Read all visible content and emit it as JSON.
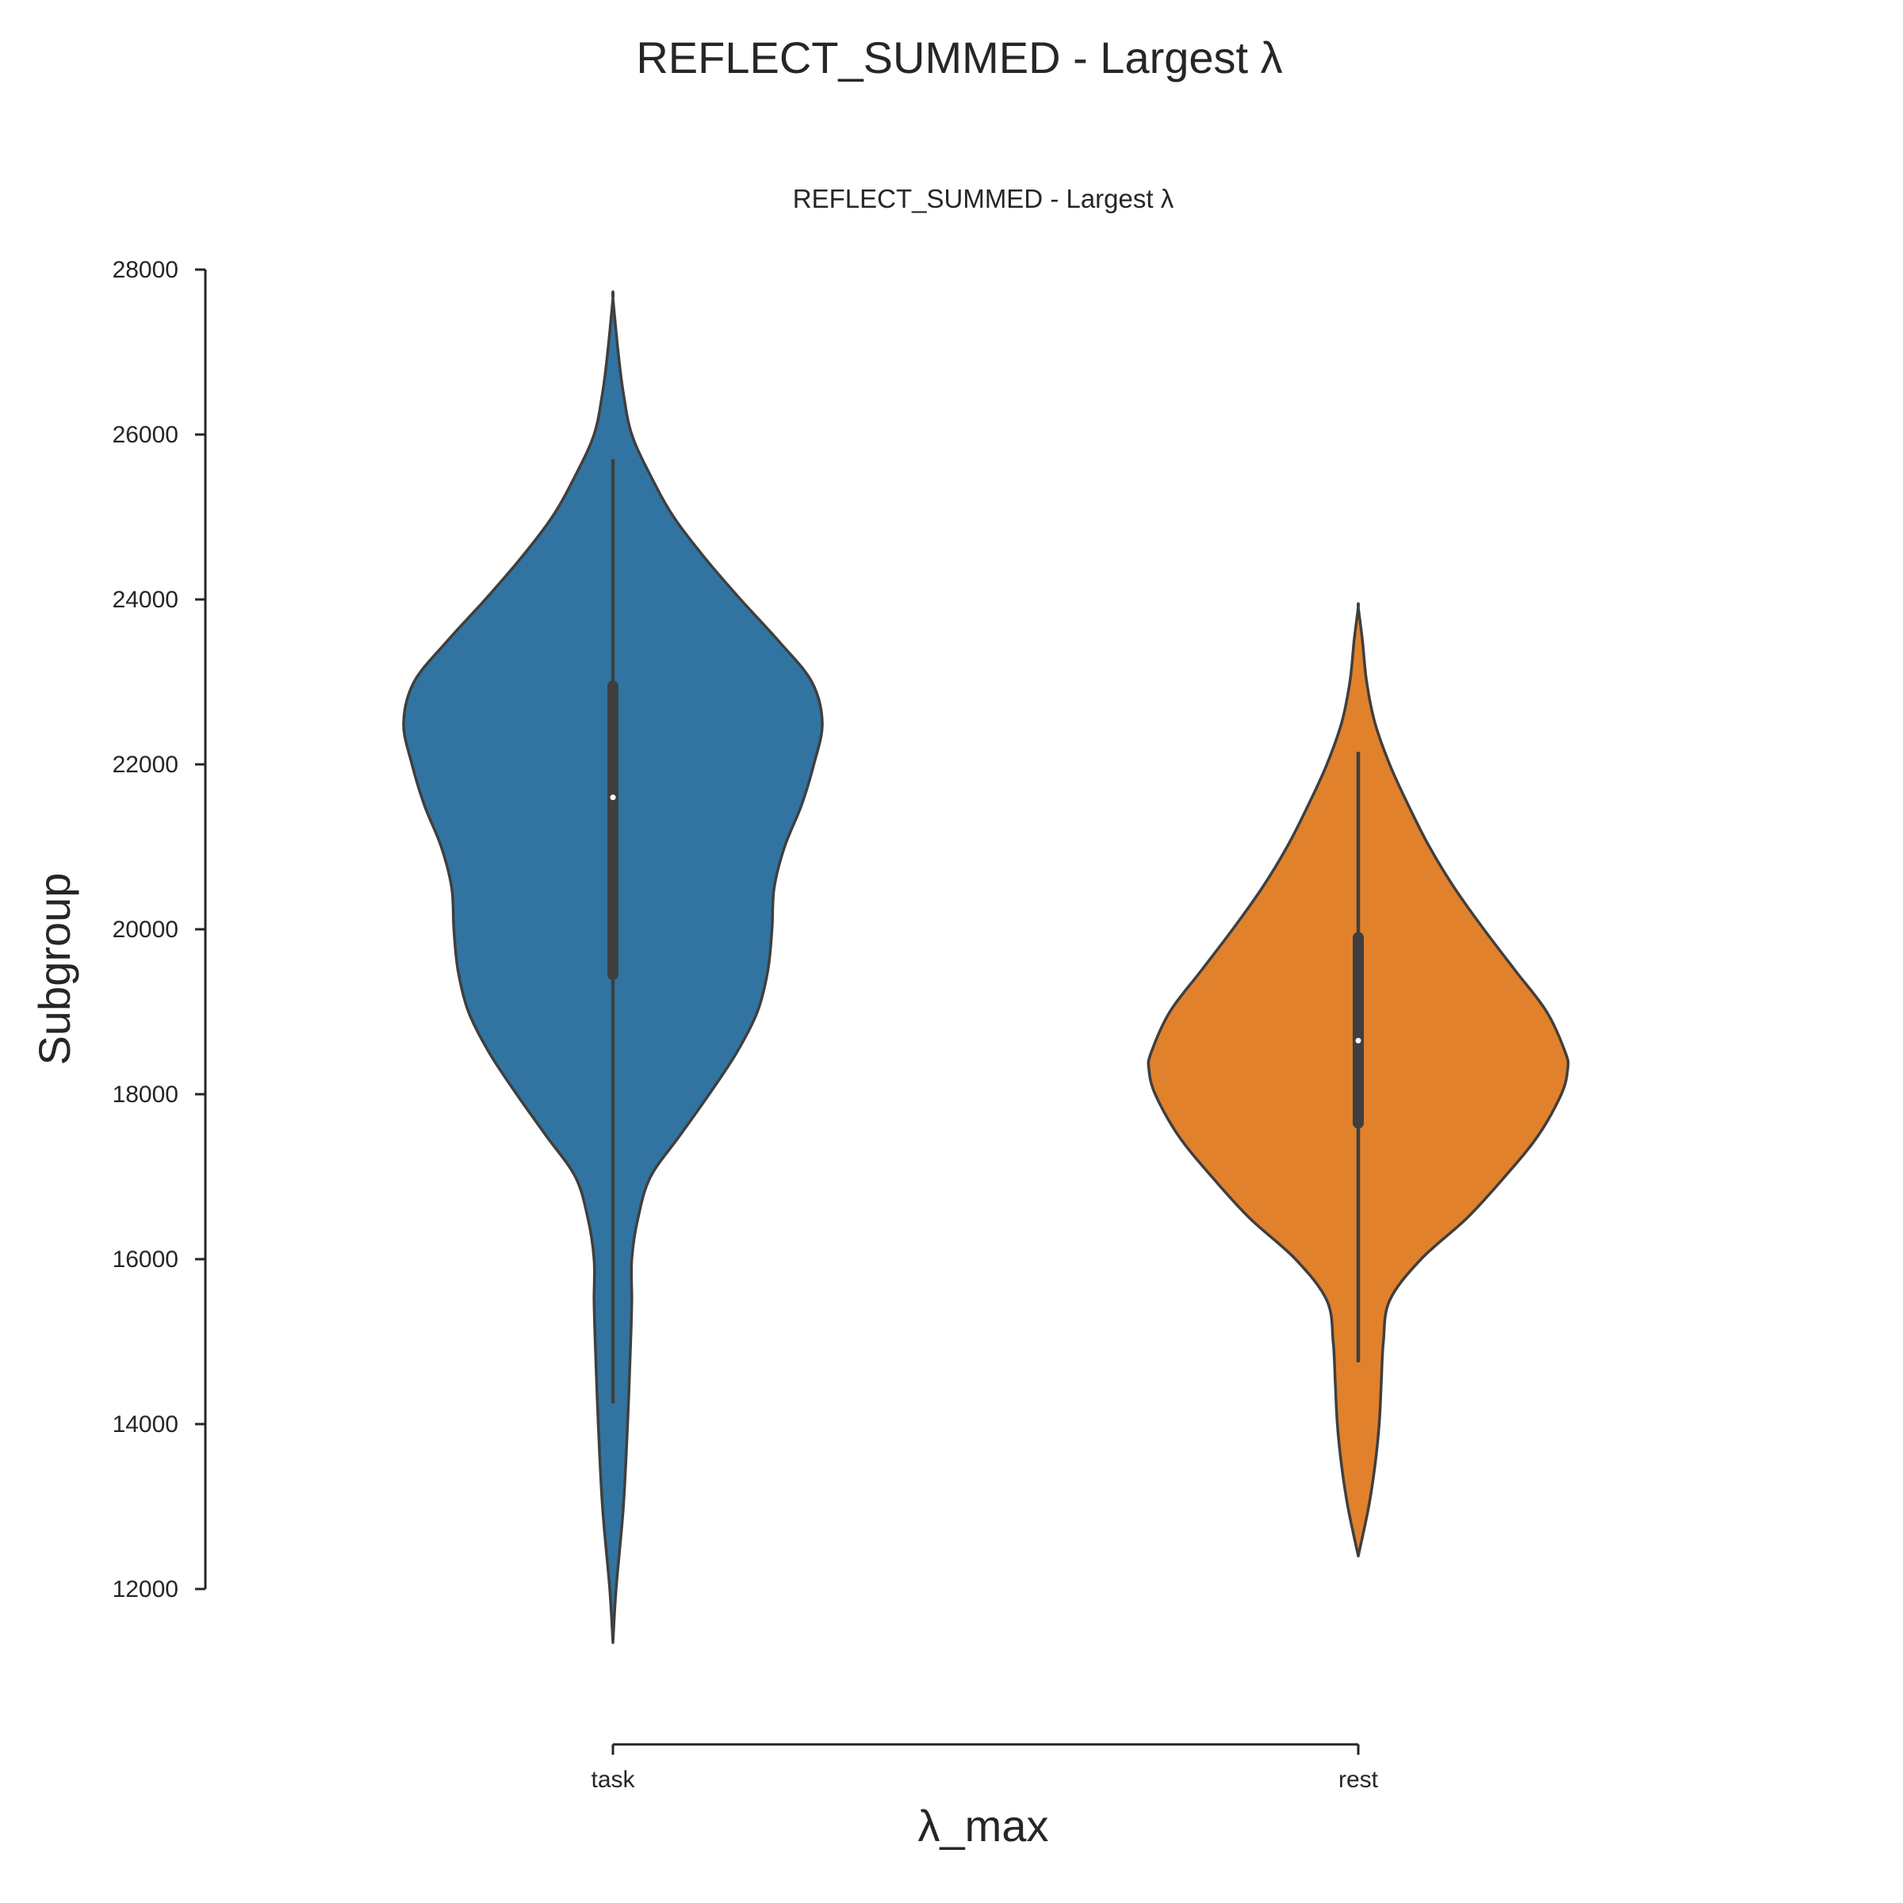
{
  "figure": {
    "suptitle": "REFLECT_SUMMED - Largest λ"
  },
  "chart_data": {
    "type": "violin",
    "title": "REFLECT_SUMMED - Largest λ",
    "xlabel": "λ_max",
    "ylabel": "Subgroup",
    "ylim": [
      12000,
      28000
    ],
    "yticks": [
      12000,
      14000,
      16000,
      18000,
      20000,
      22000,
      24000,
      26000,
      28000
    ],
    "categories": [
      "task",
      "rest"
    ],
    "grid": false,
    "violins": [
      {
        "category": "task",
        "color": "#3274a1",
        "median": 21600,
        "q1": 19450,
        "q3": 22950,
        "whisker_low": 14250,
        "whisker_high": 25700,
        "density_profile": [
          [
            11350,
            0.0
          ],
          [
            12000,
            0.015
          ],
          [
            13000,
            0.05
          ],
          [
            14000,
            0.07
          ],
          [
            15000,
            0.085
          ],
          [
            15500,
            0.09
          ],
          [
            16000,
            0.09
          ],
          [
            16500,
            0.12
          ],
          [
            17000,
            0.18
          ],
          [
            17500,
            0.32
          ],
          [
            18000,
            0.46
          ],
          [
            18500,
            0.59
          ],
          [
            19000,
            0.69
          ],
          [
            19500,
            0.74
          ],
          [
            20000,
            0.76
          ],
          [
            20500,
            0.77
          ],
          [
            21000,
            0.82
          ],
          [
            21500,
            0.9
          ],
          [
            22000,
            0.96
          ],
          [
            22500,
            1.0
          ],
          [
            23000,
            0.95
          ],
          [
            23500,
            0.79
          ],
          [
            24000,
            0.61
          ],
          [
            24500,
            0.44
          ],
          [
            25000,
            0.29
          ],
          [
            25500,
            0.18
          ],
          [
            26000,
            0.09
          ],
          [
            26500,
            0.05
          ],
          [
            27000,
            0.025
          ],
          [
            27650,
            0.0
          ]
        ]
      },
      {
        "category": "rest",
        "color": "#e1812c",
        "median": 18650,
        "q1": 17650,
        "q3": 19900,
        "whisker_low": 14750,
        "whisker_high": 22150,
        "density_profile": [
          [
            12400,
            0.0
          ],
          [
            13000,
            0.05
          ],
          [
            13500,
            0.08
          ],
          [
            14000,
            0.1
          ],
          [
            14500,
            0.11
          ],
          [
            15000,
            0.12
          ],
          [
            15500,
            0.15
          ],
          [
            16000,
            0.3
          ],
          [
            16500,
            0.52
          ],
          [
            17000,
            0.7
          ],
          [
            17500,
            0.86
          ],
          [
            18000,
            0.97
          ],
          [
            18300,
            1.0
          ],
          [
            18500,
            0.99
          ],
          [
            19000,
            0.9
          ],
          [
            19500,
            0.75
          ],
          [
            20000,
            0.6
          ],
          [
            20500,
            0.46
          ],
          [
            21000,
            0.34
          ],
          [
            21500,
            0.24
          ],
          [
            22000,
            0.15
          ],
          [
            22500,
            0.08
          ],
          [
            23000,
            0.04
          ],
          [
            23500,
            0.02
          ],
          [
            23900,
            0.0
          ]
        ]
      }
    ]
  }
}
